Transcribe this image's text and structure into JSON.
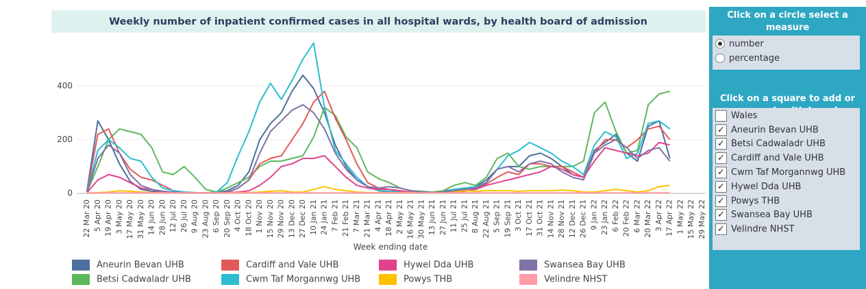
{
  "chart_data": {
    "type": "line",
    "title": "Weekly number of inpatient confirmed cases in all hospital wards, by health board of admission",
    "x_label": "Week ending date",
    "categories": [
      "22 Mar 20",
      "5 Apr 20",
      "19 Apr 20",
      "3 May 20",
      "17 May 20",
      "31 May 20",
      "14 Jun 20",
      "28 Jun 20",
      "12 Jul 20",
      "26 Jul 20",
      "9 Aug 20",
      "23 Aug 20",
      "6 Sep 20",
      "20 Sep 20",
      "4 Oct 20",
      "18 Oct 20",
      "1 Nov 20",
      "15 Nov 20",
      "29 Nov 20",
      "13 Dec 20",
      "27 Dec 20",
      "10 Jan 21",
      "24 Jan 21",
      "7 Feb 21",
      "21 Feb 21",
      "7 Mar 21",
      "21 Mar 21",
      "4 Apr 21",
      "18 Apr 21",
      "2 May 21",
      "16 May 21",
      "30 May 21",
      "13 Jun 21",
      "27 Jun 21",
      "11 Jul 21",
      "25 Jul 21",
      "8 Aug 21",
      "22 Aug 21",
      "5 Sep 21",
      "19 Sep 21",
      "3 Oct 21",
      "17 Oct 21",
      "31 Oct 21",
      "14 Nov 21",
      "28 Nov 21",
      "12 Dec 21",
      "26 Dec 21",
      "9 Jan 22",
      "23 Jan 22",
      "6 Feb 22",
      "20 Feb 22",
      "6 Mar 22",
      "20 Mar 22",
      "3 Apr 22",
      "17 Apr 22",
      "1 May 22",
      "15 May 22",
      "29 May 22"
    ],
    "series": [
      {
        "name": "Aneurin Bevan UHB",
        "color": "#4c6f9c",
        "values": [
          10,
          270,
          200,
          110,
          45,
          15,
          8,
          5,
          3,
          2,
          2,
          2,
          3,
          10,
          30,
          80,
          200,
          260,
          300,
          380,
          440,
          390,
          300,
          180,
          100,
          50,
          25,
          10,
          5,
          5,
          3,
          2,
          3,
          8,
          15,
          20,
          25,
          50,
          90,
          100,
          100,
          140,
          150,
          130,
          100,
          70,
          60,
          160,
          190,
          220,
          150,
          120,
          250,
          270,
          130,
          null,
          null,
          null
        ]
      },
      {
        "name": "Betsi Cadwaladr UHB",
        "color": "#5cb85c",
        "values": [
          5,
          100,
          200,
          240,
          230,
          220,
          170,
          80,
          70,
          100,
          60,
          15,
          5,
          20,
          40,
          60,
          100,
          120,
          120,
          130,
          140,
          210,
          320,
          290,
          210,
          170,
          80,
          55,
          40,
          20,
          10,
          8,
          5,
          10,
          30,
          40,
          30,
          60,
          130,
          150,
          100,
          90,
          100,
          100,
          100,
          100,
          120,
          300,
          340,
          230,
          150,
          160,
          330,
          370,
          380,
          null,
          null,
          null
        ]
      },
      {
        "name": "Cardiff and Vale UHB",
        "color": "#e05a5a",
        "values": [
          5,
          220,
          240,
          150,
          90,
          60,
          50,
          30,
          10,
          5,
          3,
          2,
          2,
          3,
          20,
          50,
          110,
          130,
          140,
          200,
          260,
          340,
          380,
          280,
          200,
          110,
          40,
          20,
          15,
          10,
          5,
          3,
          3,
          5,
          10,
          15,
          20,
          35,
          60,
          80,
          70,
          110,
          110,
          100,
          100,
          80,
          60,
          150,
          200,
          200,
          170,
          200,
          240,
          250,
          200,
          null,
          null,
          null
        ]
      },
      {
        "name": "Cwm Taf Morgannwg UHB",
        "color": "#2bbdd0",
        "values": [
          5,
          160,
          200,
          170,
          130,
          120,
          60,
          20,
          10,
          5,
          3,
          2,
          5,
          40,
          140,
          230,
          340,
          410,
          350,
          420,
          500,
          560,
          320,
          160,
          110,
          60,
          25,
          10,
          8,
          8,
          5,
          3,
          3,
          5,
          15,
          20,
          25,
          40,
          90,
          140,
          160,
          190,
          170,
          150,
          120,
          100,
          70,
          180,
          230,
          210,
          130,
          150,
          260,
          270,
          240,
          null,
          null,
          null
        ]
      },
      {
        "name": "Hywel Dda UHB",
        "color": "#e0438c",
        "values": [
          3,
          50,
          70,
          60,
          40,
          20,
          15,
          5,
          3,
          2,
          2,
          2,
          2,
          3,
          5,
          10,
          30,
          60,
          100,
          110,
          130,
          130,
          140,
          100,
          60,
          30,
          20,
          15,
          15,
          10,
          5,
          3,
          3,
          3,
          5,
          8,
          15,
          30,
          40,
          50,
          60,
          70,
          80,
          100,
          90,
          70,
          60,
          120,
          170,
          160,
          150,
          140,
          150,
          190,
          180,
          null,
          null,
          null
        ]
      },
      {
        "name": "Powys THB",
        "color": "#ffc000",
        "values": [
          0,
          3,
          5,
          10,
          8,
          5,
          3,
          2,
          2,
          2,
          2,
          2,
          2,
          2,
          3,
          3,
          5,
          8,
          10,
          5,
          5,
          15,
          25,
          15,
          10,
          5,
          3,
          3,
          3,
          3,
          3,
          3,
          3,
          3,
          5,
          10,
          8,
          10,
          10,
          10,
          8,
          10,
          10,
          10,
          12,
          10,
          5,
          5,
          10,
          15,
          10,
          5,
          10,
          25,
          30,
          null,
          null,
          null
        ]
      },
      {
        "name": "Swansea Bay UHB",
        "color": "#8071a8",
        "values": [
          5,
          130,
          180,
          150,
          70,
          30,
          15,
          8,
          5,
          3,
          2,
          2,
          2,
          5,
          20,
          50,
          150,
          230,
          270,
          310,
          330,
          300,
          240,
          150,
          90,
          50,
          25,
          20,
          25,
          20,
          10,
          5,
          3,
          5,
          10,
          15,
          20,
          40,
          90,
          100,
          80,
          110,
          120,
          110,
          80,
          60,
          50,
          150,
          180,
          200,
          170,
          130,
          160,
          170,
          120,
          null,
          null,
          null
        ]
      },
      {
        "name": "Velindre NHST",
        "color": "#ff9aa6",
        "values": [
          2,
          2,
          2,
          2,
          2,
          2,
          2,
          2,
          2,
          2,
          2,
          2,
          2,
          2,
          2,
          2,
          2,
          2,
          2,
          2,
          2,
          2,
          2,
          2,
          2,
          2,
          2,
          2,
          2,
          2,
          2,
          2,
          2,
          2,
          2,
          2,
          2,
          2,
          2,
          2,
          2,
          2,
          2,
          2,
          2,
          2,
          2,
          2,
          2,
          2,
          2,
          2,
          2,
          2,
          2,
          null,
          null,
          null
        ]
      }
    ],
    "ylim": [
      -10,
      580
    ],
    "yticks": [
      0,
      200,
      400
    ],
    "grid": true
  },
  "controls": {
    "measure_title": "Click on a circle select a measure",
    "measures": [
      {
        "label": "number",
        "selected": true
      },
      {
        "label": "percentage",
        "selected": false
      }
    ],
    "board_title": "Click on a square to add or remove health boards",
    "boards": [
      {
        "label": "Wales",
        "checked": false
      },
      {
        "label": "Aneurin Bevan UHB",
        "checked": true
      },
      {
        "label": "Betsi Cadwaladr UHB",
        "checked": true
      },
      {
        "label": "Cardiff and Vale UHB",
        "checked": true
      },
      {
        "label": "Cwm Taf Morgannwg UHB",
        "checked": true
      },
      {
        "label": "Hywel Dda UHB",
        "checked": true
      },
      {
        "label": "Powys THB",
        "checked": true
      },
      {
        "label": "Swansea Bay UHB",
        "checked": true
      },
      {
        "label": "Velindre NHST",
        "checked": true
      }
    ]
  }
}
